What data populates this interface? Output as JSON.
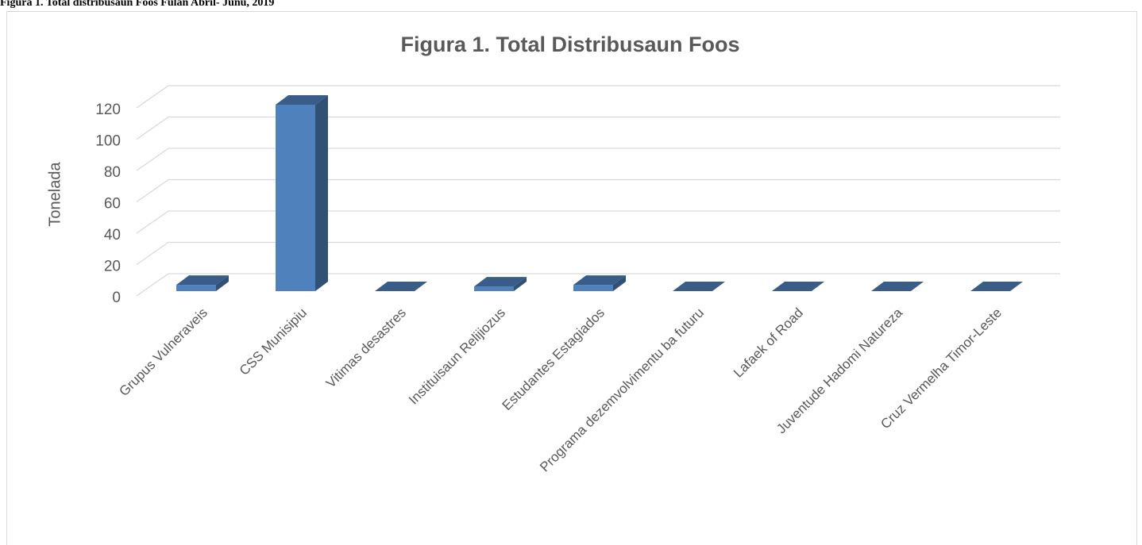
{
  "caption": "Figura 1. Total distribusaun Foos Fulan Abril- Junu, 2019",
  "chart_data": {
    "type": "bar3d",
    "title": "Figura 1. Total Distribusaun Foos",
    "y_label": "Tonelada",
    "categories": [
      "Grupus Vulneraveis",
      "CSS  Munisipiu",
      "Vitimas  desastres",
      "Instituisaun Relijiozus",
      "Estudantes Estagiados",
      "Programa dezemvolvimentu ba futuru",
      "Lafaek of Road",
      "Juventude Hadomi Natureza",
      "Cruz Vermelha Timor-Leste"
    ],
    "values": [
      4,
      119,
      0,
      3,
      4,
      0,
      0,
      0,
      0
    ],
    "color": "#4f81bd",
    "ylim": [
      0,
      120
    ],
    "yticks": [
      0,
      20,
      40,
      60,
      80,
      100,
      120
    ],
    "grid": true
  }
}
